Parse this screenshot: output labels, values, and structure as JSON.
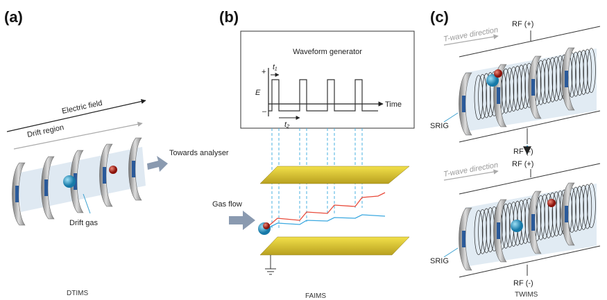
{
  "panels": [
    {
      "label": "(a)",
      "caption": "DTIMS",
      "electric_field": "Electric field",
      "drift_region": "Drift region",
      "output": "Towards analyser",
      "gas": "Drift gas"
    },
    {
      "label": "(b)",
      "caption": "FAIMS",
      "generator": "Waveform generator",
      "plus": "+",
      "minus": "–",
      "t1": "t₁",
      "t2": "t₂",
      "e_axis": "E",
      "time_axis": "Time",
      "gas_flow": "Gas flow"
    },
    {
      "label": "(c)",
      "caption": "TWIMS",
      "stages": [
        {
          "direction": "T-wave direction",
          "rf_plus": "RF (+)",
          "rf_minus": "RF (-)",
          "srig": "SRIG"
        },
        {
          "direction": "T-wave direction",
          "rf_plus": "RF (+)",
          "rf_minus": "RF (-)",
          "srig": "SRIG"
        }
      ]
    }
  ]
}
